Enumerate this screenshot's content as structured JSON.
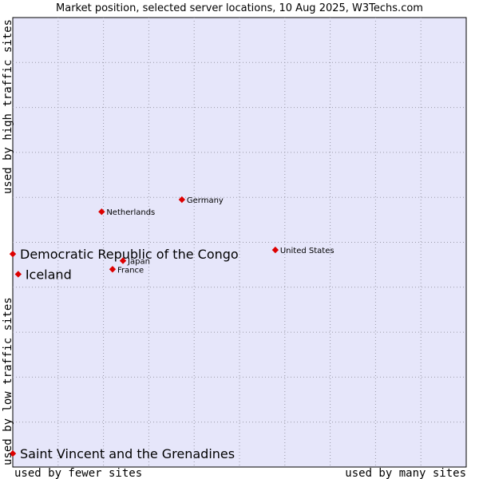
{
  "chart_data": {
    "type": "scatter",
    "title": "Market position, selected server locations, 10 Aug 2025, W3Techs.com",
    "xlabel_left": "used by fewer sites",
    "xlabel_right": "used by many sites",
    "ylabel_bottom": "used by low traffic sites",
    "ylabel_top": "used by high traffic sites",
    "xlim": [
      0,
      100
    ],
    "ylim": [
      0,
      100
    ],
    "grid": true,
    "point_color": "#dd0000",
    "plot_background": "#e6e6fa",
    "points": [
      {
        "name": "Netherlands",
        "x": 19.6,
        "y": 56.8,
        "emphasis": false
      },
      {
        "name": "Germany",
        "x": 37.3,
        "y": 59.5,
        "emphasis": false
      },
      {
        "name": "United States",
        "x": 57.9,
        "y": 48.3,
        "emphasis": false
      },
      {
        "name": "Japan",
        "x": 24.3,
        "y": 45.9,
        "emphasis": false
      },
      {
        "name": "France",
        "x": 22.0,
        "y": 44.0,
        "emphasis": false
      },
      {
        "name": "Democratic Republic of the Congo",
        "x": 0.0,
        "y": 47.4,
        "emphasis": true
      },
      {
        "name": "Iceland",
        "x": 1.2,
        "y": 42.9,
        "emphasis": true
      },
      {
        "name": "Saint Vincent and the Grenadines",
        "x": 0.0,
        "y": 3.0,
        "emphasis": true
      }
    ]
  }
}
